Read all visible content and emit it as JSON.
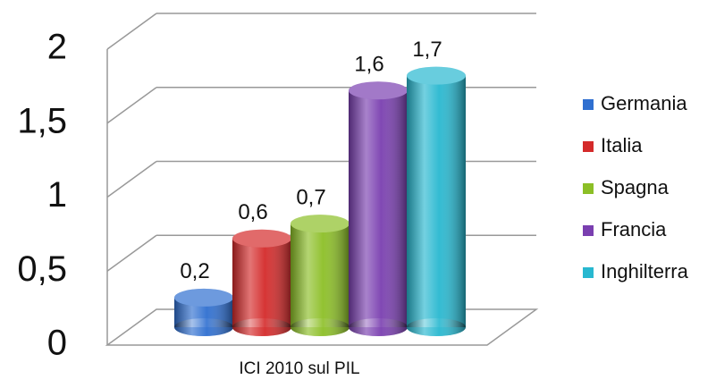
{
  "chart_data": {
    "type": "bar3d",
    "categories": [
      "ICI 2010 sul PIL"
    ],
    "series": [
      {
        "name": "Germania",
        "color": "#2f6fd0",
        "values": [
          0.2
        ],
        "value_labels": [
          "0,2"
        ]
      },
      {
        "name": "Italia",
        "color": "#d42a2a",
        "values": [
          0.6
        ],
        "value_labels": [
          "0,6"
        ]
      },
      {
        "name": "Spagna",
        "color": "#8cbf26",
        "values": [
          0.7
        ],
        "value_labels": [
          "0,7"
        ]
      },
      {
        "name": "Francia",
        "color": "#7a3fb0",
        "values": [
          1.6
        ],
        "value_labels": [
          "1,6"
        ]
      },
      {
        "name": "Inghilterra",
        "color": "#28b8d0",
        "values": [
          1.7
        ],
        "value_labels": [
          "1,7"
        ]
      }
    ],
    "ylim": [
      0,
      2
    ],
    "yticks": [
      0,
      {
        "value": 0.5,
        "label": "0,5"
      },
      1,
      {
        "value": 1.5,
        "label": "1,5"
      },
      2
    ],
    "grid": true,
    "legend": "right"
  }
}
